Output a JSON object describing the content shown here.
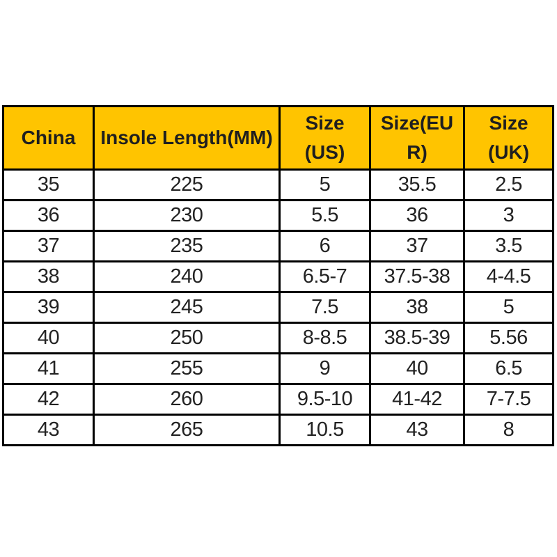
{
  "chart_data": {
    "type": "table",
    "columns": [
      "China",
      "Insole Length(MM)",
      "Size(US)",
      "Size(EUR)",
      "Size(UK)"
    ],
    "rows": [
      [
        "35",
        "225",
        "5",
        "35.5",
        "2.5"
      ],
      [
        "36",
        "230",
        "5.5",
        "36",
        "3"
      ],
      [
        "37",
        "235",
        "6",
        "37",
        "3.5"
      ],
      [
        "38",
        "240",
        "6.5-7",
        "37.5-38",
        "4-4.5"
      ],
      [
        "39",
        "245",
        "7.5",
        "38",
        "5"
      ],
      [
        "40",
        "250",
        "8-8.5",
        "38.5-39",
        "5.56"
      ],
      [
        "41",
        "255",
        "9",
        "40",
        "6.5"
      ],
      [
        "42",
        "260",
        "9.5-10",
        "41-42",
        "7-7.5"
      ],
      [
        "43",
        "265",
        "10.5",
        "43",
        "8"
      ]
    ]
  },
  "table": {
    "header_cells": [
      {
        "lines": [
          "China"
        ]
      },
      {
        "lines": [
          "Insole Length(MM)"
        ]
      },
      {
        "lines": [
          "Size",
          "(US)"
        ]
      },
      {
        "lines": [
          "Size(EU",
          "R)"
        ]
      },
      {
        "lines": [
          "Size",
          "(UK)"
        ]
      }
    ]
  },
  "colors": {
    "header_bg": "#FFC400",
    "border": "#000000",
    "header_text": "#1F1F1F",
    "cell_text": "#222222",
    "background": "#FFFFFF"
  }
}
